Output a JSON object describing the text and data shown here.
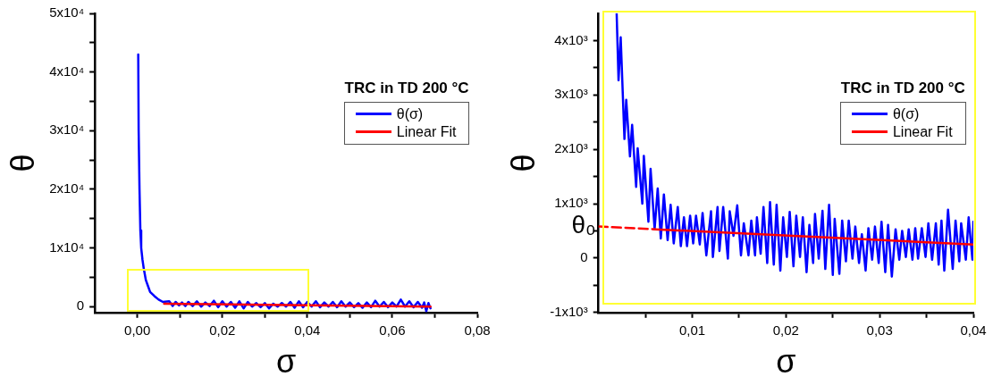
{
  "chart_data": [
    {
      "type": "line",
      "xlabel": "σ",
      "ylabel": "θ",
      "legend_title": "TRC in TD 200 °C",
      "legend": "top right",
      "xlim": [
        -0.01,
        0.08
      ],
      "xticks": [
        {
          "value": 0,
          "label": "0,00"
        },
        {
          "value": 0.01,
          "label": null
        },
        {
          "value": 0.02,
          "label": "0,02"
        },
        {
          "value": 0.03,
          "label": null
        },
        {
          "value": 0.04,
          "label": "0,04"
        },
        {
          "value": 0.05,
          "label": null
        },
        {
          "value": 0.06,
          "label": "0,06"
        },
        {
          "value": 0.07,
          "label": null
        },
        {
          "value": 0.08,
          "label": "0,08"
        }
      ],
      "ylim": [
        -1000,
        50000
      ],
      "yticks": [
        0,
        {
          "value": 5000,
          "label": null
        },
        {
          "value": 10000,
          "label": "1x10⁴"
        },
        {
          "value": 15000,
          "label": null
        },
        {
          "value": 20000,
          "label": "2x10⁴"
        },
        {
          "value": 25000,
          "label": null
        },
        {
          "value": 30000,
          "label": "3x10⁴"
        },
        {
          "value": 35000,
          "label": null
        },
        {
          "value": 40000,
          "label": "4x10⁴"
        },
        {
          "value": 45000,
          "label": null
        },
        {
          "value": 50000,
          "label": "5x10⁴"
        }
      ],
      "series": [
        {
          "name": "θ(σ)",
          "color": "#0000ff",
          "x": [
            0.0002,
            0.0003,
            0.0005,
            0.0007,
            0.0009,
            0.0012,
            0.0015,
            0.002,
            0.0025,
            0.003,
            0.004,
            0.005,
            0.006,
            0.0075,
            0.0083,
            0.009,
            0.0098,
            0.0105,
            0.0113,
            0.012,
            0.013,
            0.014,
            0.015,
            0.016,
            0.017,
            0.018,
            0.019,
            0.02,
            0.021,
            0.022,
            0.023,
            0.024,
            0.025,
            0.026,
            0.027,
            0.028,
            0.029,
            0.03,
            0.031,
            0.032,
            0.033,
            0.034,
            0.035,
            0.036,
            0.037,
            0.038,
            0.039,
            0.04,
            0.041,
            0.042,
            0.043,
            0.044,
            0.045,
            0.046,
            0.047,
            0.048,
            0.049,
            0.05,
            0.051,
            0.052,
            0.053,
            0.054,
            0.055,
            0.056,
            0.057,
            0.058,
            0.059,
            0.06,
            0.061,
            0.062,
            0.063,
            0.064,
            0.065,
            0.066,
            0.067,
            0.0675,
            0.068,
            0.0685,
            0.069
          ],
          "values": [
            43000,
            30000,
            20000,
            13000,
            10000,
            8000,
            6500,
            4500,
            3500,
            2500,
            1800,
            1200,
            800,
            900,
            100,
            800,
            200,
            700,
            100,
            800,
            100,
            900,
            0,
            700,
            100,
            1000,
            -100,
            900,
            0,
            800,
            -200,
            900,
            -300,
            800,
            0,
            600,
            -100,
            600,
            -300,
            500,
            0,
            600,
            0,
            800,
            -200,
            900,
            -100,
            800,
            0,
            900,
            -100,
            700,
            0,
            800,
            -100,
            900,
            0,
            700,
            -100,
            600,
            -200,
            700,
            -100,
            1000,
            0,
            800,
            -100,
            700,
            0,
            1200,
            0,
            900,
            -100,
            800,
            -200,
            700,
            -800,
            600,
            -300
          ]
        },
        {
          "name": "Linear Fit",
          "color": "#ff0000",
          "x": [
            0.0063,
            0.069
          ],
          "values": [
            500,
            0
          ]
        }
      ]
    },
    {
      "type": "line",
      "xlabel": "σ",
      "ylabel": "θ",
      "legend_title": "TRC in TD 200 °C",
      "legend": "top right",
      "xlim": [
        0,
        0.04
      ],
      "xticks": [
        {
          "value": 0.005,
          "label": null
        },
        {
          "value": 0.01,
          "label": "0,01"
        },
        {
          "value": 0.015,
          "label": null
        },
        {
          "value": 0.02,
          "label": "0,02"
        },
        {
          "value": 0.025,
          "label": null
        },
        {
          "value": 0.03,
          "label": "0,03"
        },
        {
          "value": 0.035,
          "label": null
        },
        {
          "value": 0.04,
          "label": "0,04"
        }
      ],
      "ylim": [
        -1000,
        4500
      ],
      "yticks": [
        {
          "value": -1000,
          "label": "-1x10³"
        },
        {
          "value": -500,
          "label": null
        },
        0,
        {
          "value": 500,
          "label": null
        },
        {
          "value": 1000,
          "label": "1x10³"
        },
        {
          "value": 1500,
          "label": null
        },
        {
          "value": 2000,
          "label": "2x10³"
        },
        {
          "value": 2500,
          "label": null
        },
        {
          "value": 3000,
          "label": "3x10³"
        },
        {
          "value": 3500,
          "label": null
        },
        {
          "value": 4000,
          "label": "4x10³"
        }
      ],
      "annotations": [
        {
          "text": "θ₀",
          "x": 0,
          "y": 580
        }
      ],
      "series": [
        {
          "name": "θ(σ)",
          "color": "#0000ff",
          "x": [
            0.00193,
            0.00213,
            0.00236,
            0.00276,
            0.00295,
            0.00335,
            0.00358,
            0.00401,
            0.00417,
            0.00467,
            0.00483,
            0.00532,
            0.00555,
            0.00598,
            0.00631,
            0.00664,
            0.00697,
            0.00737,
            0.00769,
            0.00802,
            0.00845,
            0.00878,
            0.00911,
            0.00944,
            0.00977,
            0.0101,
            0.0104,
            0.0108,
            0.0111,
            0.0115,
            0.012,
            0.0122,
            0.0127,
            0.0129,
            0.0133,
            0.0138,
            0.014,
            0.0144,
            0.0148,
            0.0152,
            0.0155,
            0.016,
            0.0163,
            0.0167,
            0.0169,
            0.0173,
            0.0176,
            0.018,
            0.0183,
            0.0187,
            0.019,
            0.0194,
            0.0197,
            0.0201,
            0.0204,
            0.0208,
            0.0211,
            0.0215,
            0.0218,
            0.0222,
            0.0225,
            0.0229,
            0.0231,
            0.0235,
            0.0239,
            0.0242,
            0.0246,
            0.025,
            0.0252,
            0.0257,
            0.026,
            0.0264,
            0.0267,
            0.0271,
            0.0274,
            0.0278,
            0.0281,
            0.0285,
            0.0288,
            0.0292,
            0.0295,
            0.0299,
            0.0302,
            0.0306,
            0.0309,
            0.0313,
            0.0317,
            0.0321,
            0.0324,
            0.0328,
            0.0331,
            0.0335,
            0.0338,
            0.0341,
            0.0345,
            0.0349,
            0.0352,
            0.0356,
            0.036,
            0.0363,
            0.0366,
            0.0369,
            0.0373,
            0.0378,
            0.0381,
            0.0385,
            0.0387,
            0.0392,
            0.0395,
            0.0399,
            0.04
          ],
          "values": [
            4490,
            3270,
            4060,
            2190,
            2910,
            1870,
            2450,
            1310,
            2020,
            1000,
            1880,
            670,
            1640,
            530,
            1280,
            360,
            1170,
            330,
            980,
            270,
            940,
            220,
            750,
            220,
            780,
            270,
            780,
            250,
            830,
            50,
            860,
            20,
            940,
            130,
            940,
            -10,
            860,
            410,
            970,
            50,
            640,
            50,
            690,
            50,
            750,
            80,
            940,
            -90,
            1030,
            -120,
            980,
            -230,
            750,
            20,
            850,
            -150,
            780,
            20,
            750,
            -260,
            610,
            -90,
            810,
            -10,
            870,
            -200,
            980,
            -310,
            720,
            -290,
            690,
            -60,
            690,
            -10,
            580,
            -90,
            440,
            -230,
            550,
            -30,
            580,
            -90,
            670,
            -260,
            610,
            -340,
            530,
            -30,
            500,
            20,
            530,
            -30,
            550,
            -10,
            550,
            20,
            640,
            -30,
            640,
            -120,
            690,
            -230,
            890,
            -200,
            690,
            -60,
            640,
            -30,
            750,
            -30,
            670
          ]
        },
        {
          "name": "Linear Fit",
          "color": "#ff0000",
          "x": [
            0.006,
            0.04
          ],
          "values": [
            530,
            250
          ]
        },
        {
          "color": "#ff0000",
          "line_style": "dashed",
          "x": [
            0,
            0.006
          ],
          "values": [
            580,
            530
          ]
        }
      ]
    }
  ]
}
